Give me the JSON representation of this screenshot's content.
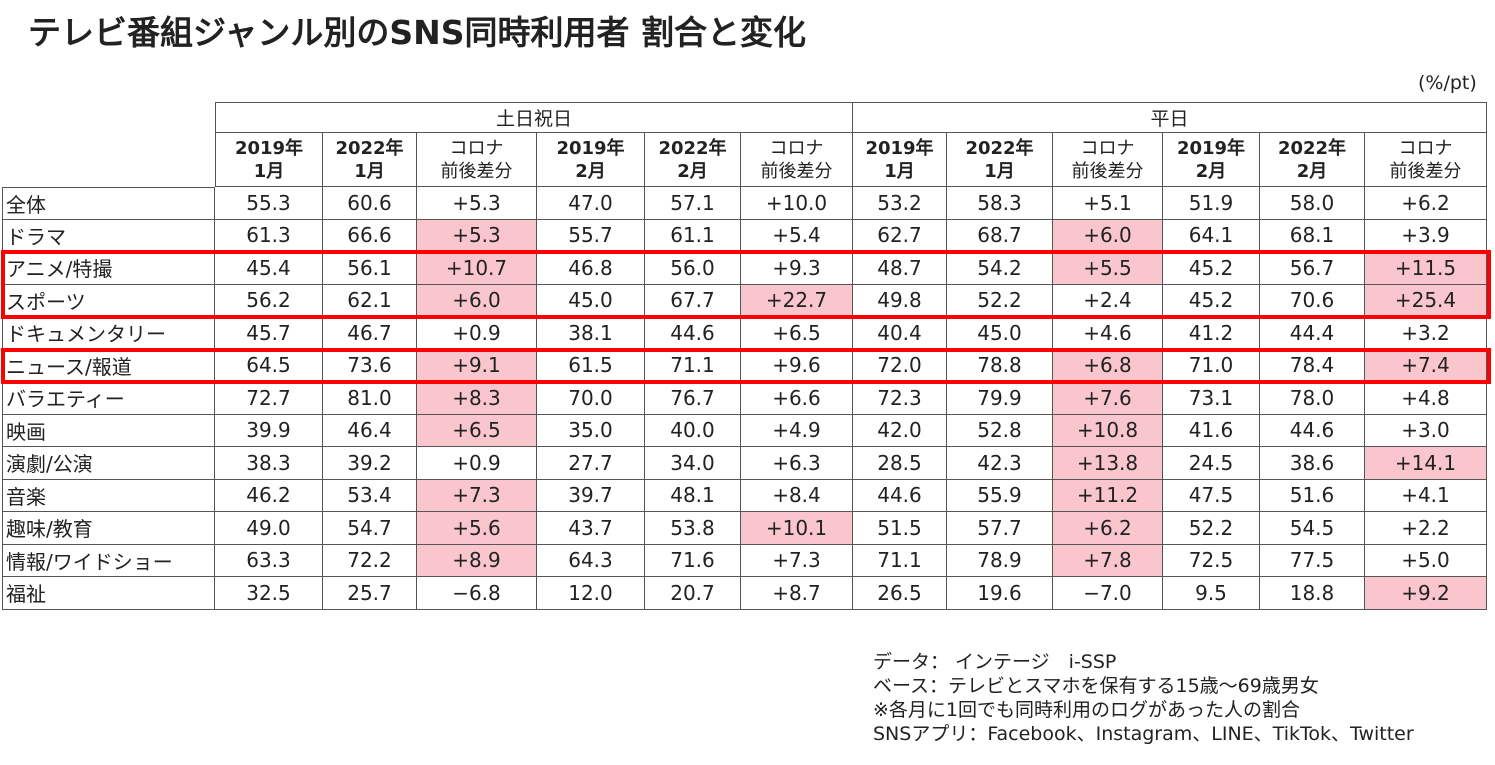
{
  "title": "テレビ番組ジャンル別のSNS同時利用者 割合と変化",
  "unit": "(%/pt)",
  "table": {
    "groups": [
      "土日祝日",
      "平日"
    ],
    "columns": [
      [
        "2019年",
        "1月"
      ],
      [
        "2022年",
        "1月"
      ],
      [
        "コロナ",
        "前後差分"
      ],
      [
        "2019年",
        "2月"
      ],
      [
        "2022年",
        "2月"
      ],
      [
        "コロナ",
        "前後差分"
      ],
      [
        "2019年",
        "1月"
      ],
      [
        "2022年",
        "1月"
      ],
      [
        "コロナ",
        "前後差分"
      ],
      [
        "2019年",
        "2月"
      ],
      [
        "2022年",
        "2月"
      ],
      [
        "コロナ",
        "前後差分"
      ]
    ],
    "bold_columns": [
      0,
      1,
      3,
      4,
      6,
      7,
      9,
      10
    ],
    "highlight_color": "#f9c6cd",
    "box_color": "#ff0000",
    "boxed_rows": [
      [
        2,
        3
      ],
      [
        5
      ]
    ],
    "rows": [
      {
        "label": "全体",
        "cells": [
          "55.3",
          "60.6",
          "+5.3",
          "47.0",
          "57.1",
          "+10.0",
          "53.2",
          "58.3",
          "+5.1",
          "51.9",
          "58.0",
          "+6.2"
        ],
        "highlight": []
      },
      {
        "label": "ドラマ",
        "cells": [
          "61.3",
          "66.6",
          "+5.3",
          "55.7",
          "61.1",
          "+5.4",
          "62.7",
          "68.7",
          "+6.0",
          "64.1",
          "68.1",
          "+3.9"
        ],
        "highlight": [
          2,
          8
        ]
      },
      {
        "label": "アニメ/特撮",
        "cells": [
          "45.4",
          "56.1",
          "+10.7",
          "46.8",
          "56.0",
          "+9.3",
          "48.7",
          "54.2",
          "+5.5",
          "45.2",
          "56.7",
          "+11.5"
        ],
        "highlight": [
          2,
          8,
          11
        ]
      },
      {
        "label": "スポーツ",
        "cells": [
          "56.2",
          "62.1",
          "+6.0",
          "45.0",
          "67.7",
          "+22.7",
          "49.8",
          "52.2",
          "+2.4",
          "45.2",
          "70.6",
          "+25.4"
        ],
        "highlight": [
          2,
          5,
          11
        ]
      },
      {
        "label": "ドキュメンタリー",
        "cells": [
          "45.7",
          "46.7",
          "+0.9",
          "38.1",
          "44.6",
          "+6.5",
          "40.4",
          "45.0",
          "+4.6",
          "41.2",
          "44.4",
          "+3.2"
        ],
        "highlight": []
      },
      {
        "label": "ニュース/報道",
        "cells": [
          "64.5",
          "73.6",
          "+9.1",
          "61.5",
          "71.1",
          "+9.6",
          "72.0",
          "78.8",
          "+6.8",
          "71.0",
          "78.4",
          "+7.4"
        ],
        "highlight": [
          2,
          8,
          11
        ]
      },
      {
        "label": "バラエティー",
        "cells": [
          "72.7",
          "81.0",
          "+8.3",
          "70.0",
          "76.7",
          "+6.6",
          "72.3",
          "79.9",
          "+7.6",
          "73.1",
          "78.0",
          "+4.8"
        ],
        "highlight": [
          2,
          8
        ]
      },
      {
        "label": "映画",
        "cells": [
          "39.9",
          "46.4",
          "+6.5",
          "35.0",
          "40.0",
          "+4.9",
          "42.0",
          "52.8",
          "+10.8",
          "41.6",
          "44.6",
          "+3.0"
        ],
        "highlight": [
          2,
          8
        ]
      },
      {
        "label": "演劇/公演",
        "cells": [
          "38.3",
          "39.2",
          "+0.9",
          "27.7",
          "34.0",
          "+6.3",
          "28.5",
          "42.3",
          "+13.8",
          "24.5",
          "38.6",
          "+14.1"
        ],
        "highlight": [
          8,
          11
        ]
      },
      {
        "label": "音楽",
        "cells": [
          "46.2",
          "53.4",
          "+7.3",
          "39.7",
          "48.1",
          "+8.4",
          "44.6",
          "55.9",
          "+11.2",
          "47.5",
          "51.6",
          "+4.1"
        ],
        "highlight": [
          2,
          8
        ]
      },
      {
        "label": "趣味/教育",
        "cells": [
          "49.0",
          "54.7",
          "+5.6",
          "43.7",
          "53.8",
          "+10.1",
          "51.5",
          "57.7",
          "+6.2",
          "52.2",
          "54.5",
          "+2.2"
        ],
        "highlight": [
          2,
          5,
          8
        ]
      },
      {
        "label": "情報/ワイドショー",
        "cells": [
          "63.3",
          "72.2",
          "+8.9",
          "64.3",
          "71.6",
          "+7.3",
          "71.1",
          "78.9",
          "+7.8",
          "72.5",
          "77.5",
          "+5.0"
        ],
        "highlight": [
          2,
          8
        ]
      },
      {
        "label": "福祉",
        "cells": [
          "32.5",
          "25.7",
          "−6.8",
          "12.0",
          "20.7",
          "+8.7",
          "26.5",
          "19.6",
          "−7.0",
          "9.5",
          "18.8",
          "+9.2"
        ],
        "highlight": [
          11
        ]
      }
    ]
  },
  "notes": [
    "データ： インテージ　i-SSP",
    "ベース：テレビとスマホを保有する15歳～69歳男女",
    "※各月に1回でも同時利用のログがあった人の割合",
    "SNSアプリ：Facebook、Instagram、LINE、TikTok、Twitter"
  ]
}
